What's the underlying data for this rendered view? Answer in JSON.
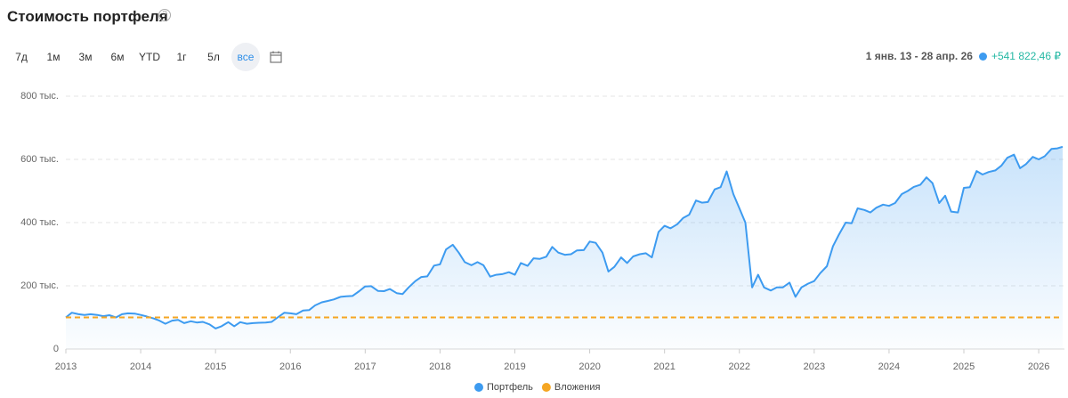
{
  "chart_data": {
    "type": "line",
    "title": "Стоимость портфеля",
    "x": [
      2013,
      2013.08,
      2013.17,
      2013.25,
      2013.33,
      2013.42,
      2013.5,
      2013.58,
      2013.67,
      2013.75,
      2013.83,
      2013.92,
      2014,
      2014.08,
      2014.17,
      2014.25,
      2014.33,
      2014.42,
      2014.5,
      2014.58,
      2014.67,
      2014.75,
      2014.83,
      2014.92,
      2015,
      2015.08,
      2015.17,
      2015.25,
      2015.33,
      2015.42,
      2015.5,
      2015.58,
      2015.67,
      2015.75,
      2015.83,
      2015.92,
      2016,
      2016.08,
      2016.17,
      2016.25,
      2016.33,
      2016.42,
      2016.5,
      2016.58,
      2016.67,
      2016.75,
      2016.83,
      2016.92,
      2017,
      2017.08,
      2017.17,
      2017.25,
      2017.33,
      2017.42,
      2017.5,
      2017.58,
      2017.67,
      2017.75,
      2017.83,
      2017.92,
      2018,
      2018.08,
      2018.17,
      2018.25,
      2018.33,
      2018.42,
      2018.5,
      2018.58,
      2018.67,
      2018.75,
      2018.83,
      2018.92,
      2019,
      2019.08,
      2019.17,
      2019.25,
      2019.33,
      2019.42,
      2019.5,
      2019.58,
      2019.67,
      2019.75,
      2019.83,
      2019.92,
      2020,
      2020.08,
      2020.17,
      2020.25,
      2020.33,
      2020.42,
      2020.5,
      2020.58,
      2020.67,
      2020.75,
      2020.83,
      2020.92,
      2021,
      2021.08,
      2021.17,
      2021.25,
      2021.33,
      2021.42,
      2021.5,
      2021.58,
      2021.67,
      2021.75,
      2021.83,
      2021.92,
      2022,
      2022.08,
      2022.17,
      2022.25,
      2022.33,
      2022.42,
      2022.5,
      2022.58,
      2022.67,
      2022.75,
      2022.83,
      2022.92,
      2023,
      2023.08,
      2023.17,
      2023.25,
      2023.33,
      2023.42,
      2023.5,
      2023.58,
      2023.67,
      2023.75,
      2023.83,
      2023.92,
      2024,
      2024.08,
      2024.17,
      2024.25,
      2024.33,
      2024.42,
      2024.5,
      2024.58,
      2024.67,
      2024.75,
      2024.83,
      2024.92,
      2025,
      2025.08,
      2025.17,
      2025.25,
      2025.33,
      2025.42,
      2025.5,
      2025.58,
      2025.67,
      2025.75,
      2025.83,
      2025.92,
      2026,
      2026.08,
      2026.17,
      2026.25,
      2026.32
    ],
    "series": [
      {
        "name": "Портфель",
        "color": "#3d9bf0",
        "fill": true,
        "values": [
          100000,
          115000,
          110000,
          108000,
          110000,
          108000,
          104000,
          107000,
          100000,
          110000,
          113000,
          112000,
          108000,
          103000,
          97000,
          90000,
          80000,
          90000,
          92000,
          82000,
          88000,
          84000,
          86000,
          78000,
          65000,
          72000,
          85000,
          72000,
          85000,
          80000,
          82000,
          83000,
          84000,
          86000,
          100000,
          115000,
          113000,
          110000,
          122000,
          123000,
          138000,
          148000,
          152000,
          157000,
          165000,
          167000,
          168000,
          183000,
          198000,
          199000,
          184000,
          183000,
          190000,
          177000,
          174000,
          195000,
          215000,
          228000,
          230000,
          264000,
          268000,
          315000,
          330000,
          305000,
          275000,
          265000,
          275000,
          265000,
          229000,
          235000,
          237000,
          243000,
          235000,
          272000,
          263000,
          287000,
          285000,
          292000,
          323000,
          305000,
          298000,
          300000,
          312000,
          313000,
          340000,
          336000,
          305000,
          245000,
          260000,
          290000,
          272000,
          293000,
          300000,
          303000,
          290000,
          370000,
          390000,
          382000,
          395000,
          415000,
          425000,
          470000,
          463000,
          465000,
          505000,
          512000,
          562000,
          490000,
          445000,
          400000,
          195000,
          235000,
          195000,
          185000,
          195000,
          195000,
          210000,
          165000,
          195000,
          207000,
          215000,
          240000,
          262000,
          325000,
          362000,
          400000,
          398000,
          445000,
          440000,
          432000,
          447000,
          457000,
          453000,
          462000,
          490000,
          500000,
          513000,
          520000,
          543000,
          525000,
          462000,
          485000,
          435000,
          432000,
          510000,
          512000,
          563000,
          552000,
          560000,
          565000,
          580000,
          605000,
          615000,
          572000,
          585000,
          608000,
          600000,
          610000,
          633000,
          635000,
          640000
        ]
      },
      {
        "name": "Вложения",
        "color": "#f5a623",
        "dashed": true,
        "values": [
          100000,
          100000,
          100000,
          100000,
          100000,
          100000,
          100000,
          100000,
          100000,
          100000,
          100000,
          100000,
          100000,
          100000,
          100000,
          100000,
          100000,
          100000,
          100000,
          100000,
          100000,
          100000,
          100000,
          100000,
          100000,
          100000,
          100000,
          100000,
          100000,
          100000,
          100000,
          100000,
          100000,
          100000,
          100000,
          100000,
          100000,
          100000,
          100000,
          100000,
          100000,
          100000,
          100000,
          100000,
          100000,
          100000,
          100000,
          100000,
          100000,
          100000,
          100000,
          100000,
          100000,
          100000,
          100000,
          100000,
          100000,
          100000,
          100000,
          100000,
          100000,
          100000,
          100000,
          100000,
          100000,
          100000,
          100000,
          100000,
          100000,
          100000,
          100000,
          100000,
          100000,
          100000,
          100000,
          100000,
          100000,
          100000,
          100000,
          100000,
          100000,
          100000,
          100000,
          100000,
          100000,
          100000,
          100000,
          100000,
          100000,
          100000,
          100000,
          100000,
          100000,
          100000,
          100000,
          100000,
          100000,
          100000,
          100000,
          100000,
          100000,
          100000,
          100000,
          100000,
          100000,
          100000,
          100000,
          100000,
          100000,
          100000,
          100000,
          100000,
          100000,
          100000,
          100000,
          100000,
          100000,
          100000,
          100000,
          100000,
          100000,
          100000,
          100000,
          100000,
          100000,
          100000,
          100000,
          100000,
          100000,
          100000,
          100000,
          100000,
          100000,
          100000,
          100000,
          100000,
          100000,
          100000,
          100000,
          100000,
          100000,
          100000,
          100000,
          100000,
          100000,
          100000,
          100000,
          100000,
          100000,
          100000,
          100000,
          100000,
          100000,
          100000,
          100000,
          100000,
          100000,
          100000,
          100000,
          100000,
          100000
        ]
      }
    ],
    "xlim": [
      2013,
      2026.32
    ],
    "xticks": [
      2013,
      2014,
      2015,
      2016,
      2017,
      2018,
      2019,
      2020,
      2021,
      2022,
      2023,
      2024,
      2025,
      2026
    ],
    "ylim": [
      0,
      800000
    ],
    "yticks": [
      0,
      {
        "value": 200000,
        "label": "200 тыс."
      },
      {
        "value": 400000,
        "label": "400 тыс."
      },
      {
        "value": 600000,
        "label": "600 тыс."
      },
      {
        "value": 800000,
        "label": "800 тыс."
      }
    ],
    "grid": true,
    "legend": "bottom"
  },
  "controls": {
    "periods": [
      "7д",
      "1м",
      "3м",
      "6м",
      "YTD",
      "1г",
      "5л",
      "все"
    ]
  },
  "header": {
    "range": "1 янв. 13 - 28 апр. 26",
    "change": "+541 822,46 ₽"
  }
}
